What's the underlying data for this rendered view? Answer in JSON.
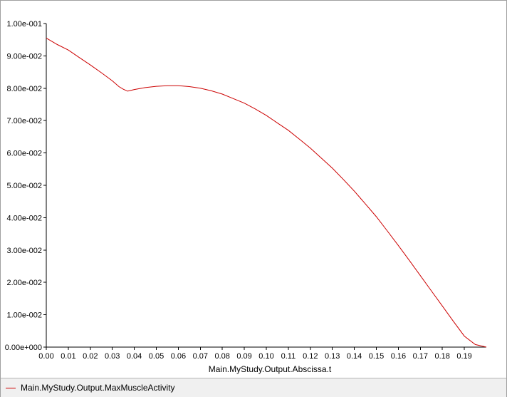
{
  "chart_data": {
    "type": "line",
    "xlabel": "Main.MyStudy.Output.Abscissa.t",
    "ylabel": "",
    "xlim": [
      0.0,
      0.2
    ],
    "ylim": [
      0.0,
      0.1
    ],
    "x_ticks": [
      "0.00",
      "0.01",
      "0.02",
      "0.03",
      "0.04",
      "0.05",
      "0.06",
      "0.07",
      "0.08",
      "0.09",
      "0.10",
      "0.11",
      "0.12",
      "0.13",
      "0.14",
      "0.15",
      "0.16",
      "0.17",
      "0.18",
      "0.19"
    ],
    "y_ticks": [
      "0.00e+000",
      "1.00e-002",
      "2.00e-002",
      "3.00e-002",
      "4.00e-002",
      "5.00e-002",
      "6.00e-002",
      "7.00e-002",
      "8.00e-002",
      "9.00e-002",
      "1.00e-001"
    ],
    "grid": false,
    "legend_position": "bottom",
    "series": [
      {
        "name": "Main.MyStudy.Output.MaxMuscleActivity",
        "color": "#cc0000",
        "x": [
          0.0,
          0.005,
          0.01,
          0.015,
          0.02,
          0.025,
          0.03,
          0.033,
          0.035,
          0.037,
          0.04,
          0.045,
          0.05,
          0.055,
          0.06,
          0.065,
          0.07,
          0.075,
          0.08,
          0.085,
          0.09,
          0.095,
          0.1,
          0.105,
          0.11,
          0.115,
          0.12,
          0.125,
          0.13,
          0.135,
          0.14,
          0.145,
          0.15,
          0.155,
          0.16,
          0.165,
          0.17,
          0.175,
          0.18,
          0.185,
          0.19,
          0.195,
          0.2
        ],
        "values": [
          0.0955,
          0.0935,
          0.0918,
          0.0895,
          0.0872,
          0.0848,
          0.0823,
          0.0805,
          0.0797,
          0.0791,
          0.0796,
          0.0802,
          0.0806,
          0.0808,
          0.0808,
          0.0805,
          0.08,
          0.0792,
          0.0782,
          0.0768,
          0.0754,
          0.0736,
          0.0716,
          0.0693,
          0.067,
          0.0643,
          0.0615,
          0.0584,
          0.0553,
          0.0518,
          0.0482,
          0.0443,
          0.0403,
          0.0359,
          0.0314,
          0.0268,
          0.0221,
          0.0174,
          0.0127,
          0.008,
          0.0034,
          0.0008,
          0.0
        ]
      }
    ]
  }
}
